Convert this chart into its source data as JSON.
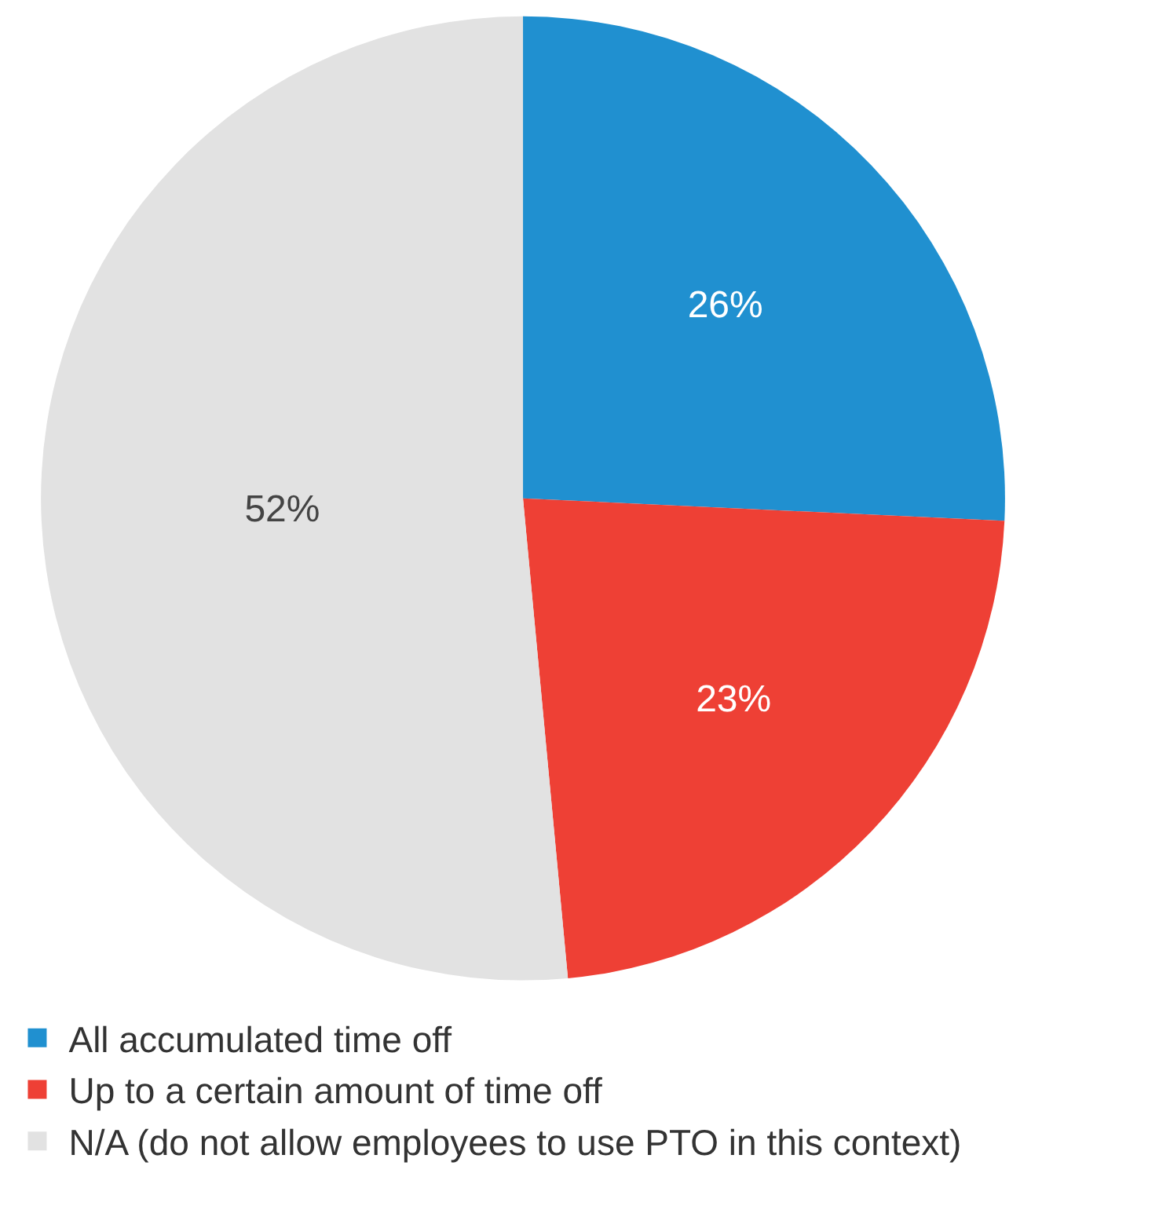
{
  "chart_data": {
    "type": "pie",
    "categories": [
      "All accumulated time off",
      "Up to a certain amount of time off",
      "N/A (do not allow employees to use PTO in this context)"
    ],
    "values": [
      26,
      23,
      52
    ],
    "value_labels": [
      "26%",
      "23%",
      "52%"
    ],
    "colors": [
      "#2090d0",
      "#ee4035",
      "#e2e2e2"
    ],
    "legend": "bottom"
  }
}
